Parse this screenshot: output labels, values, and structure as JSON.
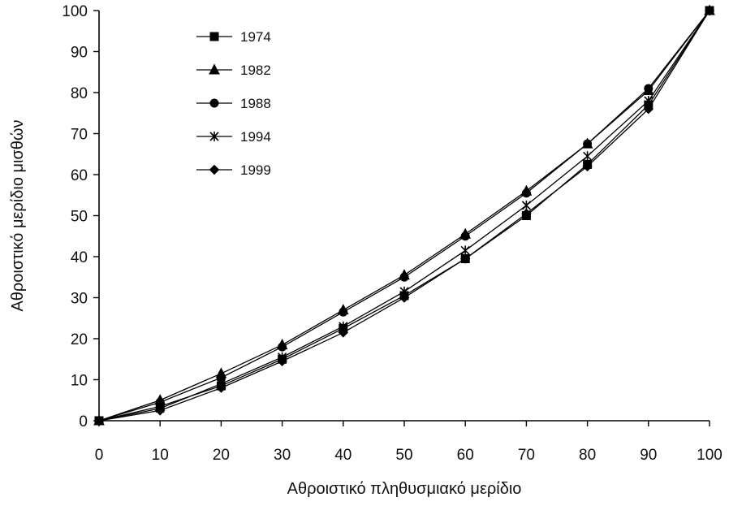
{
  "chart_data": {
    "type": "line",
    "title": "",
    "xlabel": "Αθροιστικό πληθυσμιακό μερίδιο",
    "ylabel": "Αθροιστικό μερίδιο μισθών",
    "xlim": [
      0,
      100
    ],
    "ylim": [
      0,
      100
    ],
    "x_ticks": [
      0,
      10,
      20,
      30,
      40,
      50,
      60,
      70,
      80,
      90,
      100
    ],
    "y_ticks": [
      0,
      10,
      20,
      30,
      40,
      50,
      60,
      70,
      80,
      90,
      100
    ],
    "x": [
      0,
      10,
      20,
      30,
      40,
      50,
      60,
      70,
      80,
      90,
      100
    ],
    "grid": false,
    "legend_position": "top-left",
    "series": [
      {
        "name": "1974",
        "marker": "square",
        "values": [
          0,
          3.5,
          8.5,
          15,
          22.5,
          30.5,
          39.5,
          50,
          62.5,
          77,
          100
        ]
      },
      {
        "name": "1982",
        "marker": "triangle",
        "values": [
          0,
          5,
          11.5,
          18.5,
          27,
          35.5,
          45.5,
          56,
          67.5,
          80.5,
          100
        ]
      },
      {
        "name": "1988",
        "marker": "circle",
        "values": [
          0,
          4.5,
          10.5,
          18,
          26.5,
          35,
          45,
          55.5,
          67.5,
          81,
          100
        ]
      },
      {
        "name": "1994",
        "marker": "star",
        "values": [
          0,
          3,
          9,
          15.5,
          23,
          31.5,
          41.5,
          52.5,
          64.5,
          78,
          100
        ]
      },
      {
        "name": "1999",
        "marker": "diamond",
        "values": [
          0,
          2.5,
          8,
          14.5,
          21.5,
          30,
          39.5,
          50.5,
          62,
          76,
          100
        ]
      }
    ]
  }
}
